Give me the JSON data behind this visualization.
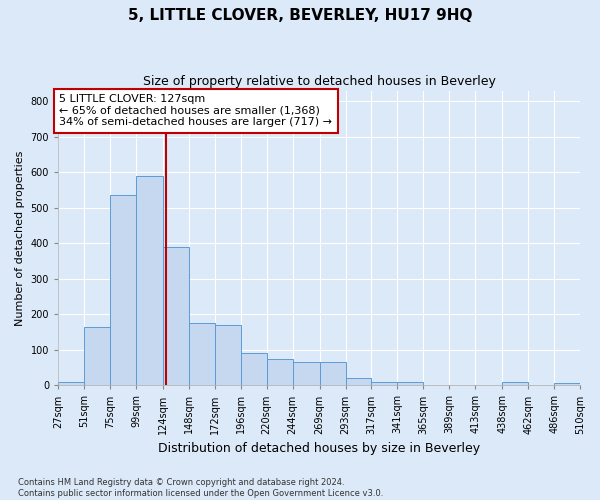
{
  "title": "5, LITTLE CLOVER, BEVERLEY, HU17 9HQ",
  "subtitle": "Size of property relative to detached houses in Beverley",
  "xlabel": "Distribution of detached houses by size in Beverley",
  "ylabel": "Number of detached properties",
  "bar_color": "#c5d8f0",
  "bar_edge_color": "#5b9bd5",
  "highlight_line_color": "#c00000",
  "highlight_value": 127,
  "annotation_text": "5 LITTLE CLOVER: 127sqm\n← 65% of detached houses are smaller (1,368)\n34% of semi-detached houses are larger (717) →",
  "annotation_box_facecolor": "#ffffff",
  "annotation_box_edgecolor": "#c00000",
  "footer_text": "Contains HM Land Registry data © Crown copyright and database right 2024.\nContains public sector information licensed under the Open Government Licence v3.0.",
  "bin_edges": [
    27,
    51,
    75,
    99,
    124,
    148,
    172,
    196,
    220,
    244,
    269,
    293,
    317,
    341,
    365,
    389,
    413,
    438,
    462,
    486,
    510
  ],
  "counts": [
    10,
    163,
    535,
    590,
    390,
    175,
    170,
    90,
    75,
    65,
    65,
    20,
    10,
    10,
    0,
    0,
    0,
    10,
    0,
    5
  ],
  "ylim": [
    0,
    830
  ],
  "yticks": [
    0,
    100,
    200,
    300,
    400,
    500,
    600,
    700,
    800
  ],
  "background_color": "#dce9f8",
  "plot_background_color": "#dce9f8",
  "grid_color": "#ffffff",
  "title_fontsize": 11,
  "subtitle_fontsize": 9,
  "xlabel_fontsize": 9,
  "ylabel_fontsize": 8,
  "tick_fontsize": 7,
  "annotation_fontsize": 8,
  "footer_fontsize": 6
}
